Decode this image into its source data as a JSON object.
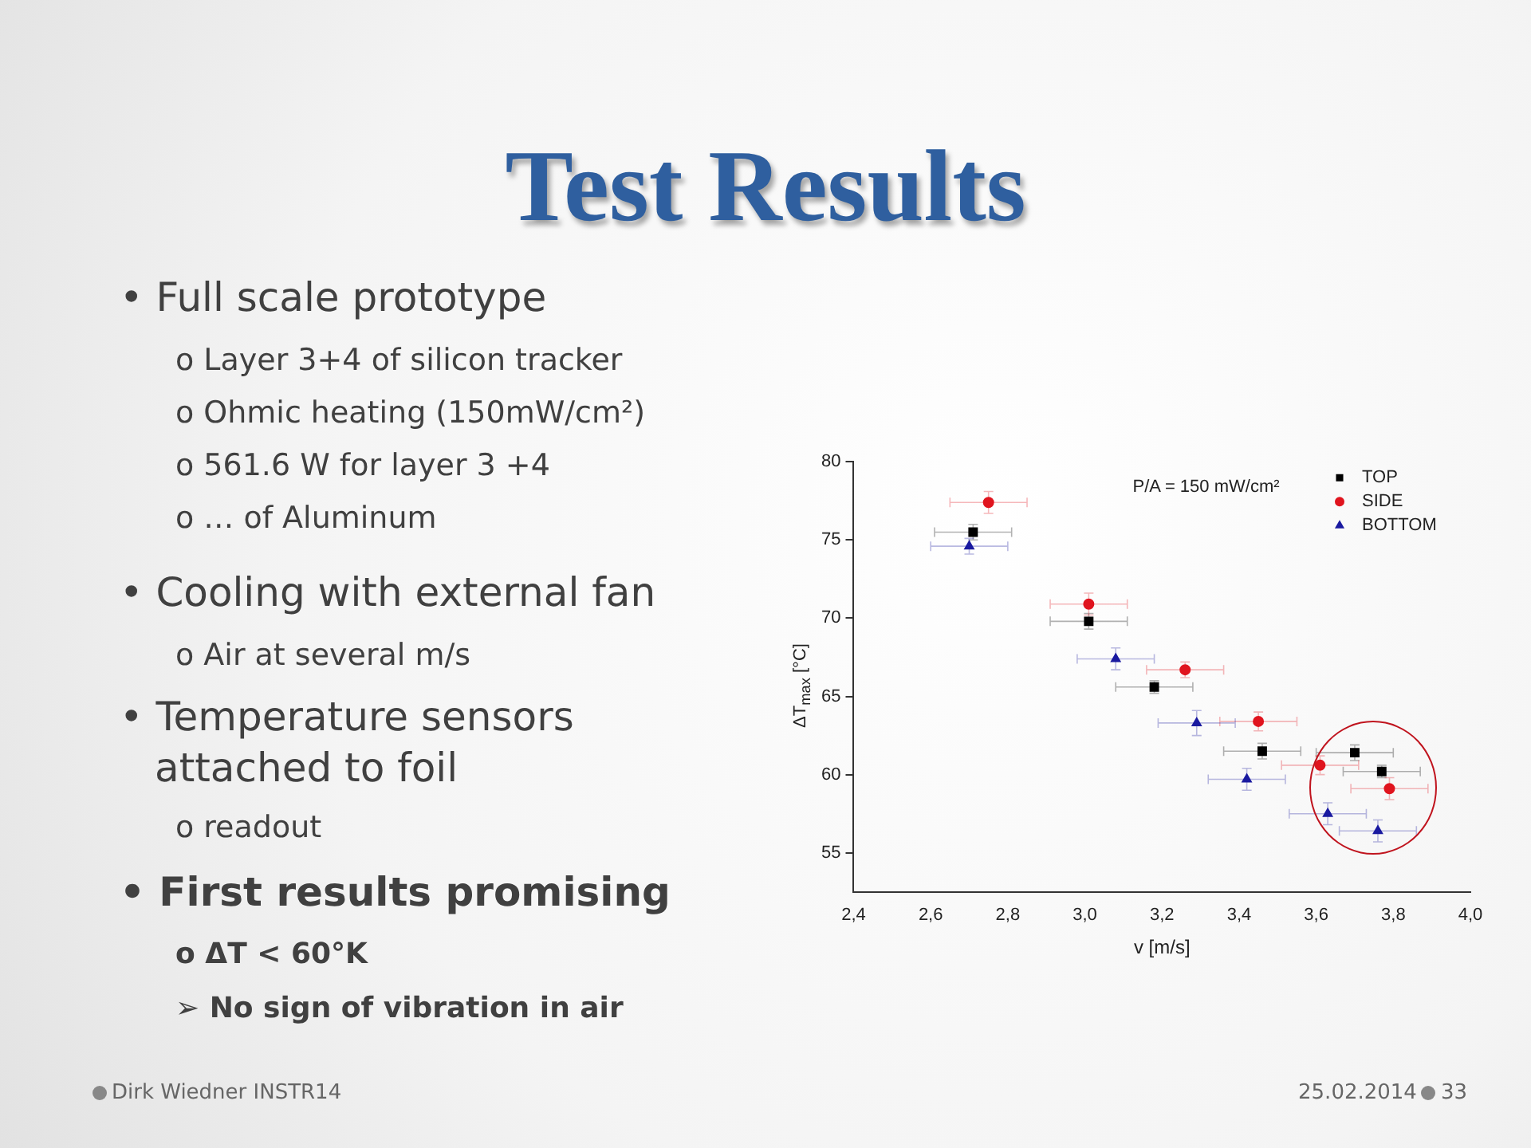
{
  "chart_data": {
    "type": "scatter",
    "title": "Test Results",
    "xlabel": "v [m/s]",
    "ylabel": "ΔT$_{max}$ [°C]",
    "xlim": [
      2.4,
      4.0
    ],
    "xticks": [
      {
        "value": 2.4,
        "label": "2,4"
      },
      {
        "value": 2.6,
        "label": "2,6"
      },
      {
        "value": 2.8,
        "label": "2,8"
      },
      {
        "value": 3.0,
        "label": "3,0"
      },
      {
        "value": 3.2,
        "label": "3,2"
      },
      {
        "value": 3.4,
        "label": "3,4"
      },
      {
        "value": 3.6,
        "label": "3,6"
      },
      {
        "value": 3.8,
        "label": "3,8"
      },
      {
        "value": 4.0,
        "label": "4,0"
      }
    ],
    "ylim": [
      52.5,
      80
    ],
    "yticks": [
      55,
      60,
      65,
      70,
      75,
      80
    ],
    "grid": false,
    "legend": "top right",
    "series": [
      {
        "name": "TOP",
        "color": "#000000",
        "marker": "square",
        "x": [
          2.71,
          3.01,
          3.18,
          3.46,
          3.7,
          3.77
        ],
        "values": [
          75.5,
          69.8,
          65.6,
          61.5,
          61.4,
          60.2
        ],
        "errors": [
          0.5,
          0.5,
          0.4,
          0.5,
          0.5,
          0.4
        ],
        "xerrors": [
          0.1,
          0.1,
          0.1,
          0.1,
          0.1,
          0.1
        ]
      },
      {
        "name": "SIDE",
        "color": "#e0141e",
        "marker": "circle",
        "x": [
          2.75,
          3.01,
          3.26,
          3.45,
          3.61,
          3.79
        ],
        "values": [
          77.4,
          70.9,
          66.7,
          63.4,
          60.6,
          59.1
        ],
        "errors": [
          0.7,
          0.7,
          0.5,
          0.6,
          0.6,
          0.7
        ],
        "xerrors": [
          0.1,
          0.1,
          0.1,
          0.1,
          0.1,
          0.1
        ]
      },
      {
        "name": "BOTTOM",
        "color": "#1a1aa0",
        "marker": "triangle",
        "x": [
          2.7,
          3.08,
          3.29,
          3.42,
          3.63,
          3.76
        ],
        "values": [
          74.6,
          67.4,
          63.3,
          59.7,
          57.5,
          56.4
        ],
        "errors": [
          0.5,
          0.7,
          0.8,
          0.7,
          0.7,
          0.7
        ],
        "xerrors": [
          0.1,
          0.1,
          0.1,
          0.1,
          0.1,
          0.1
        ]
      }
    ],
    "annotations": [
      "P/A = 150 mW/cm²",
      "• Full scale prototype",
      "o Layer 3+4 of silicon tracker",
      "o Ohmic heating (150mW/cm²)",
      "o 561.6 W for layer 3 +4",
      "o … of Aluminum",
      "• Cooling with external fan",
      "o Air at several m/s",
      "• Temperature sensors attached to foil",
      "o readout",
      "• First results promising",
      "o ΔT < 60°K",
      "➢ No sign of vibration in air",
      "Dirk Wiedner INSTR14",
      "25.02.2014",
      "33"
    ]
  }
}
